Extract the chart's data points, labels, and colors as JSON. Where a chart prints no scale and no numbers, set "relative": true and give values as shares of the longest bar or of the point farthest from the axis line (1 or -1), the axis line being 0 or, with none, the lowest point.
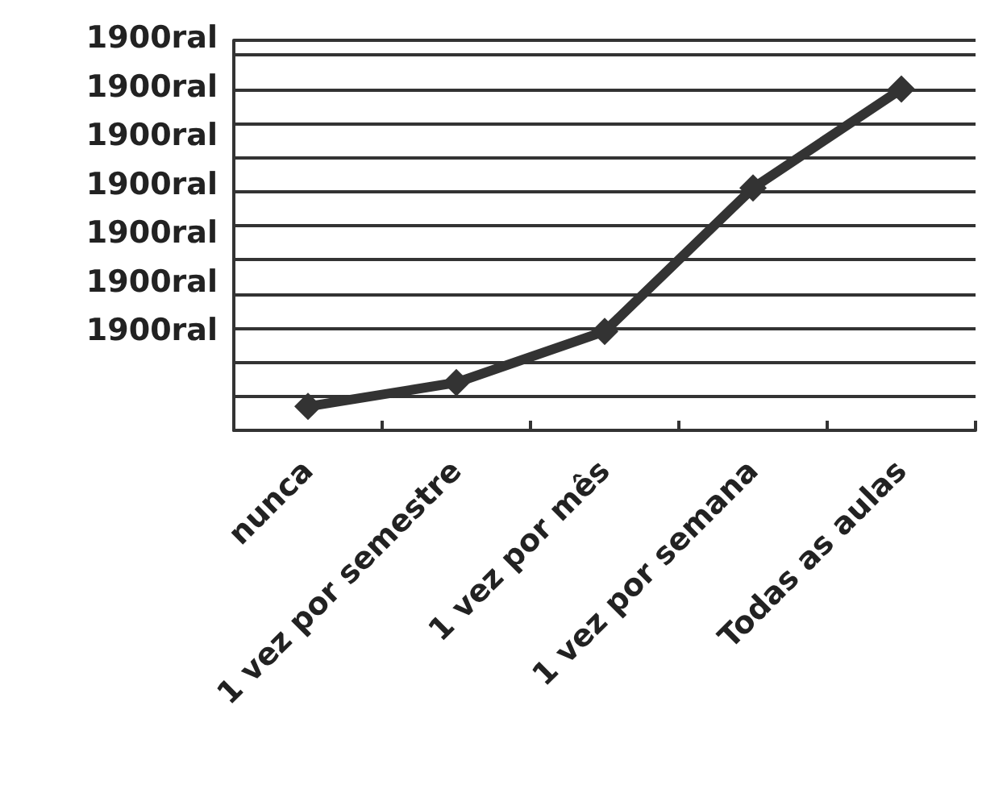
{
  "chart_data": {
    "type": "line",
    "categories": [
      "nunca",
      "1 vez por semestre",
      "1 vez por mês",
      "1 vez por semana",
      "Todas as aulas"
    ],
    "series": [
      {
        "color": "#333333",
        "values": [
          0.07,
          0.14,
          0.29,
          0.71,
          1
        ]
      }
    ],
    "relative": true,
    "annotations": [
      "1900ral",
      "1900ral",
      "1900ral",
      "1900ral",
      "1900ral",
      "1900ral",
      "1900ral"
    ],
    "grid": "y",
    "marker": "diamond",
    "line_style": "solid"
  }
}
